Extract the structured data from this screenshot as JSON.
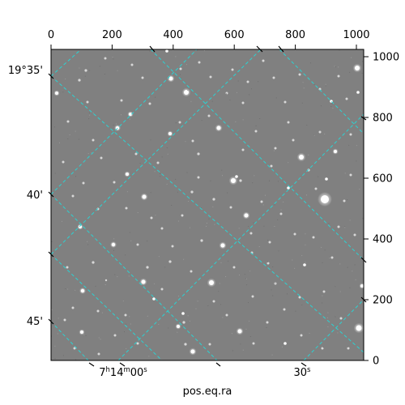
{
  "panel": {
    "pixel_range": [
      0,
      1024
    ],
    "ticks": [
      0,
      200,
      400,
      600,
      800,
      1000
    ],
    "top_tick_labels": [
      "0",
      "200",
      "400",
      "600",
      "800",
      "1000"
    ],
    "right_tick_labels": [
      "0",
      "200",
      "400",
      "600",
      "800",
      "1000"
    ],
    "ra_labels": {
      "left": {
        "h": "7",
        "m": "14",
        "s": "00"
      },
      "right": {
        "s": "30"
      }
    },
    "dec_labels": [
      "19°35'",
      "40'",
      "45'"
    ],
    "xlabel": "pos.eq.ra",
    "grid_color": "#2ad3d3",
    "background_color": "#808080"
  }
}
